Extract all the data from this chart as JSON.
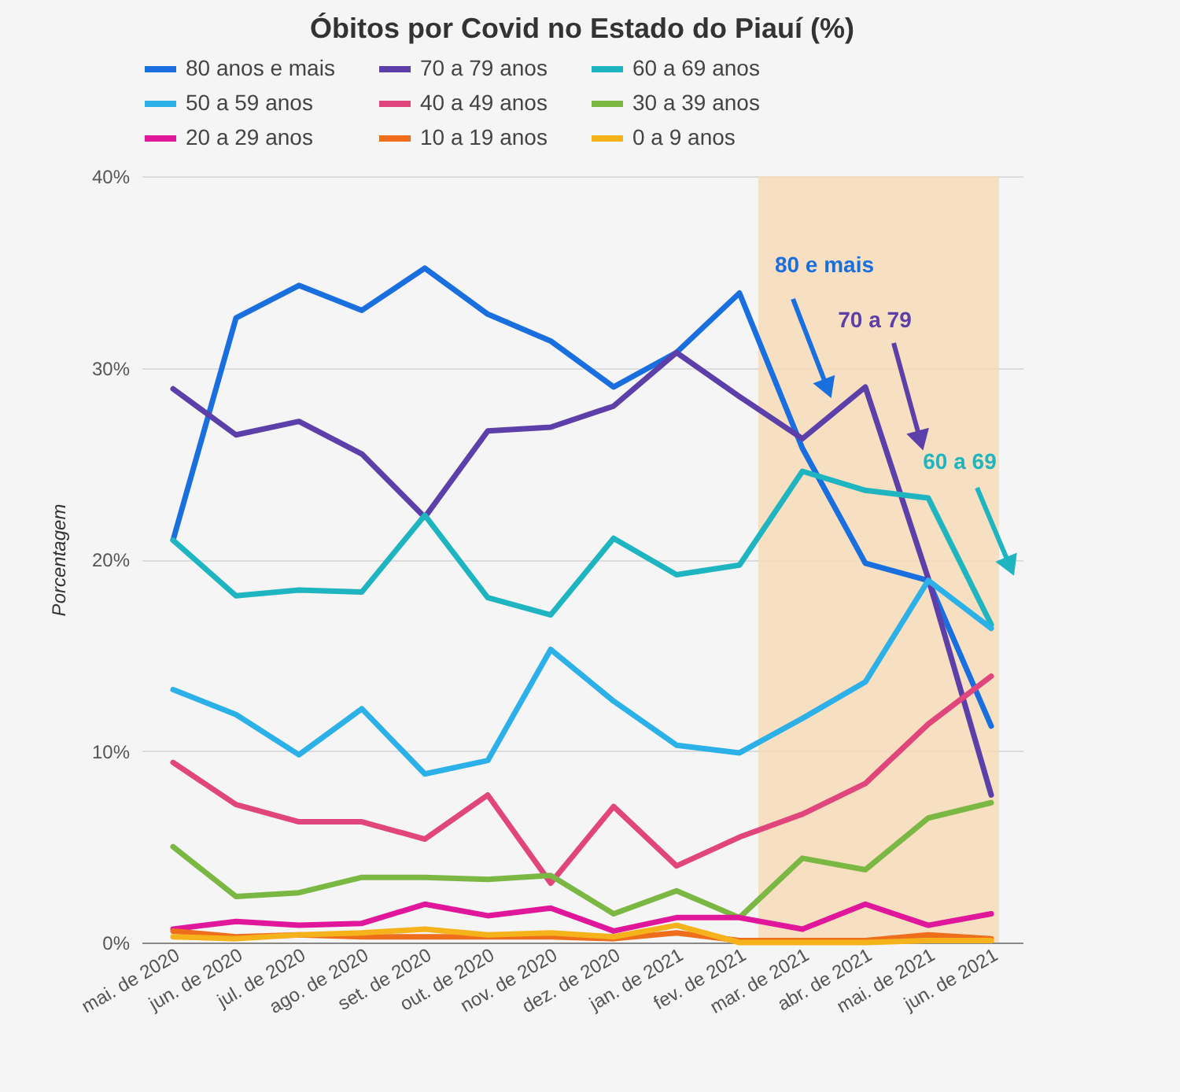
{
  "chart_data": {
    "type": "line",
    "title": "Óbitos por Covid no Estado do Piauí (%)",
    "ylabel": "Porcentagem",
    "categories": [
      "mai. de 2020",
      "jun. de 2020",
      "jul. de 2020",
      "ago. de 2020",
      "set. de 2020",
      "out. de 2020",
      "nov. de 2020",
      "dez. de 2020",
      "jan. de 2021",
      "fev. de 2021",
      "mar. de 2021",
      "abr. de 2021",
      "mai. de 2021",
      "jun. de 2021"
    ],
    "series": [
      {
        "name": "80 anos e mais",
        "color": "#1a6fdf",
        "values": [
          21,
          32.6,
          34.3,
          33,
          35.2,
          32.8,
          31.4,
          29,
          30.8,
          33.9,
          25.8,
          19.8,
          18.9,
          11.3
        ]
      },
      {
        "name": "70 a 79 anos",
        "color": "#5c3fa8",
        "values": [
          28.9,
          26.5,
          27.2,
          25.5,
          22.2,
          26.7,
          26.9,
          28,
          30.8,
          28.5,
          26.3,
          29,
          19,
          7.7
        ]
      },
      {
        "name": "60 a 69 anos",
        "color": "#1fb5c0",
        "values": [
          21,
          18.1,
          18.4,
          18.3,
          22.3,
          18,
          17.1,
          21.1,
          19.2,
          19.7,
          24.6,
          23.6,
          23.2,
          16.6
        ]
      },
      {
        "name": "50 a 59 anos",
        "color": "#2cb0e8",
        "values": [
          13.2,
          11.9,
          9.8,
          12.2,
          8.8,
          9.5,
          15.3,
          12.6,
          10.3,
          9.9,
          11.7,
          13.6,
          18.9,
          16.4
        ]
      },
      {
        "name": "40 a 49 anos",
        "color": "#e0457b",
        "values": [
          9.4,
          7.2,
          6.3,
          6.3,
          5.4,
          7.7,
          3.1,
          7.1,
          4,
          5.5,
          6.7,
          8.3,
          11.4,
          13.9
        ]
      },
      {
        "name": "30 a 39 anos",
        "color": "#7bb843",
        "values": [
          5,
          2.4,
          2.6,
          3.4,
          3.4,
          3.3,
          3.5,
          1.5,
          2.7,
          1.3,
          4.4,
          3.8,
          6.5,
          7.3
        ]
      },
      {
        "name": "20 a 29 anos",
        "color": "#e0179a",
        "values": [
          0.7,
          1.1,
          0.9,
          1,
          2,
          1.4,
          1.8,
          0.6,
          1.3,
          1.3,
          0.7,
          2,
          0.9,
          1.5
        ]
      },
      {
        "name": "10 a 19 anos",
        "color": "#ee6e1c",
        "values": [
          0.6,
          0.3,
          0.4,
          0.3,
          0.3,
          0.3,
          0.3,
          0.2,
          0.5,
          0.1,
          0.1,
          0.1,
          0.4,
          0.2
        ]
      },
      {
        "name": "0 a 9 anos",
        "color": "#f5b21b",
        "values": [
          0.3,
          0.2,
          0.4,
          0.5,
          0.7,
          0.4,
          0.5,
          0.3,
          0.9,
          0,
          0,
          0,
          0.1,
          0.1
        ]
      }
    ],
    "ylim": [
      0,
      40
    ],
    "yticks": [
      {
        "value": 0,
        "label": "0%"
      },
      {
        "value": 10,
        "label": "10%"
      },
      {
        "value": 20,
        "label": "20%"
      },
      {
        "value": 30,
        "label": "30%"
      },
      {
        "value": 40,
        "label": "40%"
      }
    ],
    "grid": "y",
    "legend": "top",
    "bands": [
      {
        "axis": "x",
        "from": "fev. de 2021",
        "to": "jun. de 2021",
        "color": "#f7d9b5"
      }
    ],
    "annotations": [
      "80 e mais",
      "70 a 79",
      "60 a 69"
    ]
  }
}
